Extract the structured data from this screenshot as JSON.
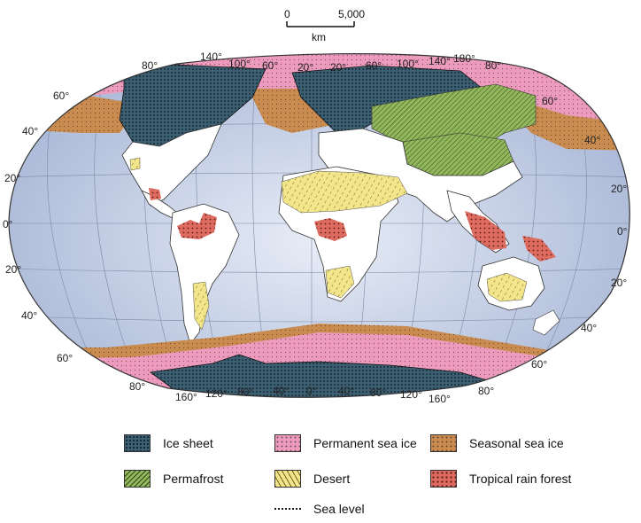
{
  "scale": {
    "zero": "0",
    "max": "5,000",
    "unit": "km"
  },
  "lat_labels": {
    "left": [
      "80°",
      "60°",
      "40°",
      "20°",
      "0°",
      "20°",
      "40°",
      "60°",
      "80°"
    ],
    "right": [
      "80°",
      "60°",
      "40°",
      "20°",
      "0°",
      "20°",
      "40°",
      "60°",
      "80°"
    ]
  },
  "lon_labels": {
    "top": [
      "140°",
      "100°",
      "60°",
      "20°",
      "20°",
      "60°",
      "100°",
      "140°",
      "180°"
    ],
    "bottom": [
      "160°",
      "120°",
      "80°",
      "40°",
      "0°",
      "40°",
      "80°",
      "120°",
      "160°"
    ]
  },
  "legend": {
    "ice_sheet": "Ice sheet",
    "permanent_sea_ice": "Permanent sea ice",
    "seasonal_sea_ice": "Seasonal sea ice",
    "permafrost": "Permafrost",
    "desert": "Desert",
    "tropical_rain_forest": "Tropical rain forest",
    "sea_level": "Sea level"
  },
  "colors": {
    "ocean": "#a9b8d8",
    "land": "#ffffff",
    "ice_sheet": "#3d5f72",
    "permanent_sea_ice": "#ec9bbd",
    "seasonal_sea_ice": "#c98b4f",
    "permafrost": "#93b75c",
    "desert": "#f2e58a",
    "tropical_rain_forest": "#de6b60"
  }
}
